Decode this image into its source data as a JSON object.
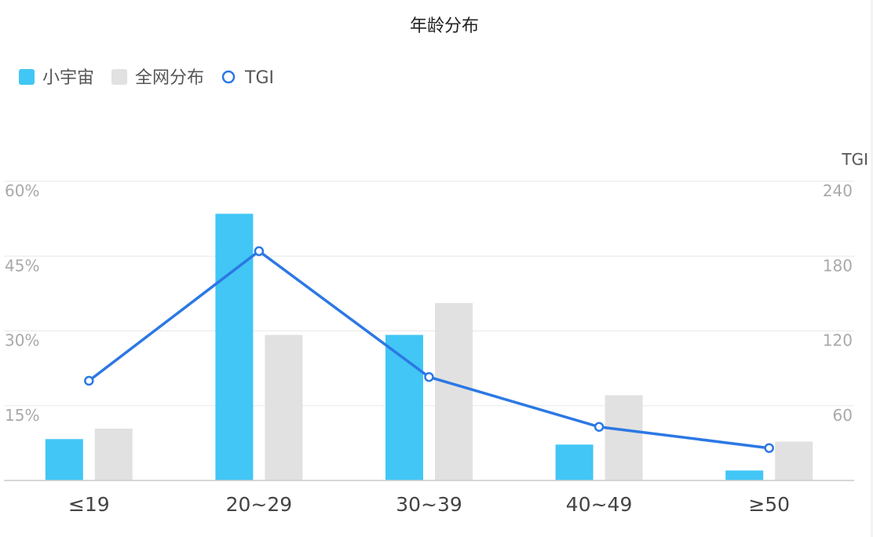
{
  "chart_data": {
    "type": "bar",
    "title": "年龄分布",
    "categories": [
      "≤19",
      "20~29",
      "30~39",
      "40~49",
      "≥50"
    ],
    "series": [
      {
        "name": "小宇宙",
        "type": "bar",
        "axis": "left",
        "color": "#41c6f5",
        "values": [
          8.3,
          53.5,
          29.2,
          7.2,
          2.0
        ]
      },
      {
        "name": "全网分布",
        "type": "bar",
        "axis": "left",
        "color": "#e1e1e1",
        "values": [
          10.4,
          29.2,
          35.6,
          17.1,
          7.8
        ]
      },
      {
        "name": "TGI",
        "type": "line",
        "axis": "right",
        "color": "#2c78e4",
        "values": [
          80,
          184,
          83,
          43,
          26
        ]
      }
    ],
    "y_left": {
      "ticks": [
        "60%",
        "45%",
        "30%",
        "15%"
      ],
      "tick_values": [
        60,
        45,
        30,
        15
      ],
      "range": [
        0,
        60
      ]
    },
    "y_right": {
      "label": "TGI",
      "ticks": [
        "240",
        "180",
        "120",
        "60"
      ],
      "tick_values": [
        240,
        180,
        120,
        60
      ],
      "range": [
        0,
        240
      ]
    },
    "legend_position": "top-left",
    "grid": true
  }
}
